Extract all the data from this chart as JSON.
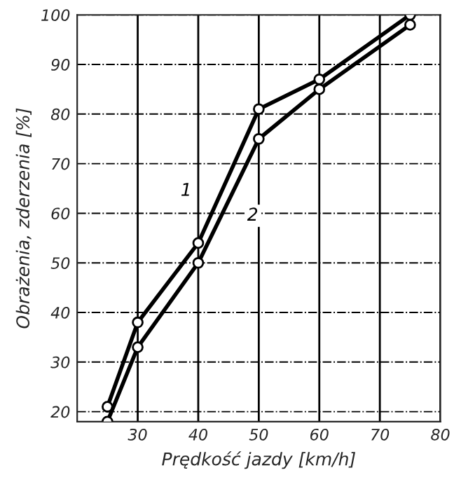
{
  "chart_data": {
    "type": "line",
    "xlabel": "Prędkość jazdy [km/h]",
    "ylabel": "Obrażenia, zderzenia [%]",
    "xlim": [
      20,
      80
    ],
    "xticks": [
      30,
      40,
      50,
      60,
      70,
      80
    ],
    "ylim": [
      18,
      100
    ],
    "yticks": [
      20,
      30,
      40,
      50,
      60,
      70,
      80,
      90,
      100
    ],
    "grid": true,
    "marker": "circle",
    "line_style": "solid",
    "series": [
      {
        "name": "1",
        "color": "#000000",
        "x": [
          25,
          30,
          40,
          50,
          60,
          75
        ],
        "values": [
          21,
          38,
          54,
          81,
          87,
          100
        ]
      },
      {
        "name": "2",
        "color": "#000000",
        "x": [
          25,
          30,
          40,
          50,
          60,
          75
        ],
        "values": [
          18,
          33,
          50,
          75,
          85,
          98
        ]
      }
    ]
  }
}
